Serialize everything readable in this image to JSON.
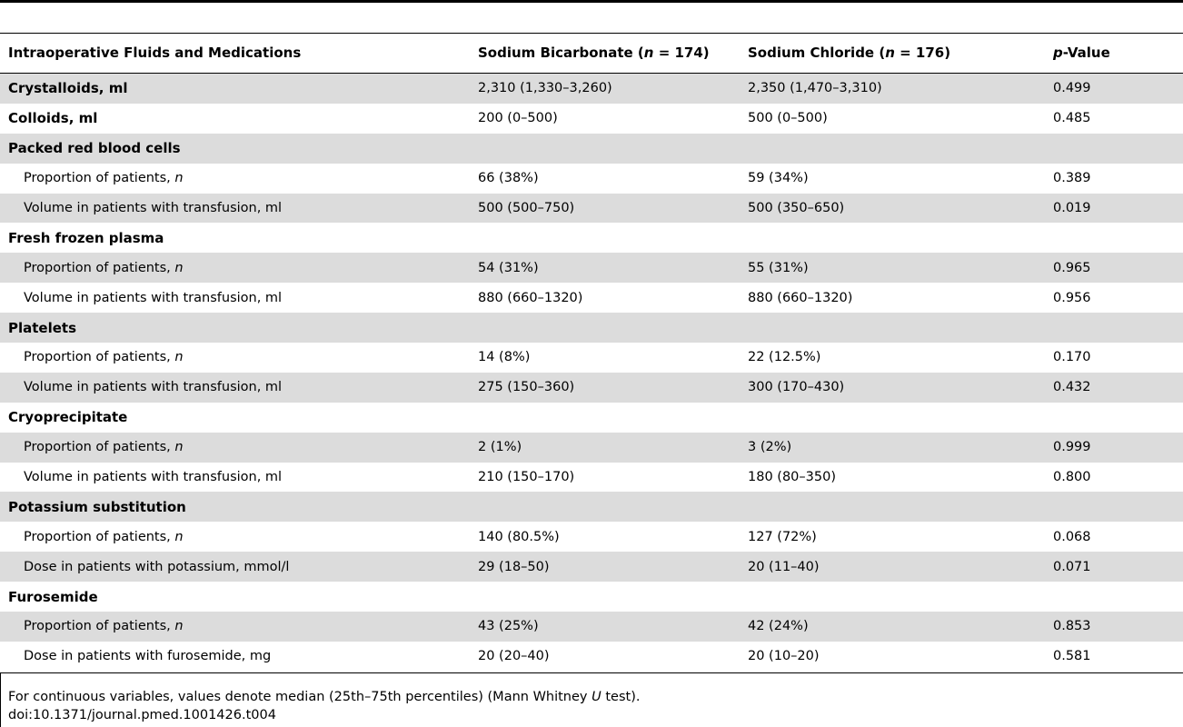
{
  "header": {
    "col1": "Intraoperative Fluids and Medications",
    "col2_prefix": "Sodium Bicarbonate (",
    "col2_n": "n",
    "col2_suffix": " = 174)",
    "col3_prefix": "Sodium Chloride (",
    "col3_n": "n",
    "col3_suffix": " = 176)",
    "col4_p": "p",
    "col4_suffix": "-Value"
  },
  "rows": [
    {
      "label": "Crystalloids, ml",
      "italic": "",
      "bic": "2,310 (1,330–3,260)",
      "nacl": "2,350 (1,470–3,310)",
      "p": "0.499"
    },
    {
      "label": "Colloids, ml",
      "italic": "",
      "bic": "200 (0–500)",
      "nacl": "500 (0–500)",
      "p": "0.485"
    },
    {
      "label": "Packed red blood cells",
      "italic": "",
      "bic": "",
      "nacl": "",
      "p": ""
    },
    {
      "label": "Proportion of patients, ",
      "italic": "n",
      "bic": "66 (38%)",
      "nacl": "59 (34%)",
      "p": "0.389"
    },
    {
      "label": "Volume in patients with transfusion, ml",
      "italic": "",
      "bic": "500 (500–750)",
      "nacl": "500 (350–650)",
      "p": "0.019"
    },
    {
      "label": "Fresh frozen plasma",
      "italic": "",
      "bic": "",
      "nacl": "",
      "p": ""
    },
    {
      "label": "Proportion of patients, ",
      "italic": "n",
      "bic": "54 (31%)",
      "nacl": "55 (31%)",
      "p": "0.965"
    },
    {
      "label": "Volume in patients with transfusion, ml",
      "italic": "",
      "bic": "880 (660–1320)",
      "nacl": "880 (660–1320)",
      "p": "0.956"
    },
    {
      "label": "Platelets",
      "italic": "",
      "bic": "",
      "nacl": "",
      "p": ""
    },
    {
      "label": "Proportion of patients, ",
      "italic": "n",
      "bic": "14 (8%)",
      "nacl": "22 (12.5%)",
      "p": "0.170"
    },
    {
      "label": "Volume in patients with transfusion, ml",
      "italic": "",
      "bic": "275 (150–360)",
      "nacl": "300 (170–430)",
      "p": "0.432"
    },
    {
      "label": "Cryoprecipitate",
      "italic": "",
      "bic": "",
      "nacl": "",
      "p": ""
    },
    {
      "label": "Proportion of patients, ",
      "italic": "n",
      "bic": "2 (1%)",
      "nacl": "3 (2%)",
      "p": "0.999"
    },
    {
      "label": "Volume in patients with transfusion, ml",
      "italic": "",
      "bic": "210 (150–170)",
      "nacl": "180 (80–350)",
      "p": "0.800"
    },
    {
      "label": "Potassium substitution",
      "italic": "",
      "bic": "",
      "nacl": "",
      "p": ""
    },
    {
      "label": "Proportion of patients, ",
      "italic": "n",
      "bic": "140 (80.5%)",
      "nacl": "127 (72%)",
      "p": "0.068"
    },
    {
      "label": "Dose in patients with potassium, mmol/l",
      "italic": "",
      "bic": "29 (18–50)",
      "nacl": "20 (11–40)",
      "p": "0.071"
    },
    {
      "label": "Furosemide",
      "italic": "",
      "bic": "",
      "nacl": "",
      "p": ""
    },
    {
      "label": "Proportion of patients, ",
      "italic": "n",
      "bic": "43 (25%)",
      "nacl": "42 (24%)",
      "p": "0.853"
    },
    {
      "label": "Dose in patients with furosemide, mg",
      "italic": "",
      "bic": "20 (20–40)",
      "nacl": "20 (10–20)",
      "p": "0.581"
    }
  ],
  "footnote": {
    "prefix": "For continuous variables, values denote median (25th–75th percentiles) (Mann Whitney ",
    "italic": "U",
    "suffix": " test)."
  },
  "doi": "doi:10.1371/journal.pmed.1001426.t004"
}
